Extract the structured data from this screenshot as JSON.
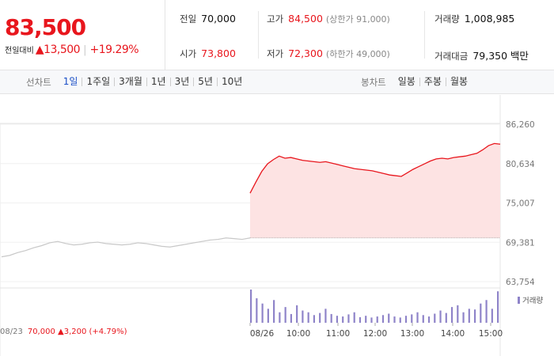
{
  "price": {
    "current": "83,500",
    "change_label": "전일대비",
    "change": "▲13,500",
    "change_pct": "+19.29%"
  },
  "stats": {
    "prev_close": {
      "label": "전일",
      "value": "70,000"
    },
    "open": {
      "label": "시가",
      "value": "73,800"
    },
    "high": {
      "label": "고가",
      "value": "84,500",
      "sub": "(상한가 91,000)"
    },
    "low": {
      "label": "저가",
      "value": "72,300",
      "sub": "(하한가 49,000)"
    },
    "volume": {
      "label": "거래량",
      "value": "1,008,985"
    },
    "amount": {
      "label": "거래대금",
      "value": "79,350",
      "unit": "백만"
    }
  },
  "period_tabs": {
    "label": "선차트",
    "items": [
      "1일",
      "1주일",
      "3개월",
      "1년",
      "3년",
      "5년",
      "10년"
    ],
    "active": "1일"
  },
  "candle_tabs": {
    "label": "봉차트",
    "items": [
      "일봉",
      "주봉",
      "월봉"
    ]
  },
  "colors": {
    "up": "#e8161d",
    "prev_line": "#c8c8c8",
    "area": "#fde3e3",
    "volume": "#8f84c9",
    "active_tab": "#1a4fc7"
  },
  "chart_data": {
    "type": "area",
    "y_ticks": [
      "86,260",
      "80,634",
      "75,007",
      "69,381",
      "63,754"
    ],
    "ylim": [
      63754,
      86260
    ],
    "x_ticks": [
      "08/26",
      "10:00",
      "11:00",
      "12:00",
      "13:00",
      "14:00",
      "15:00"
    ],
    "prev_day": {
      "date": "08/23",
      "close": "70,000",
      "change": "▲3,200",
      "change_pct": "(+4.79%)",
      "values": [
        67300,
        67500,
        67900,
        68200,
        68600,
        68900,
        69300,
        69500,
        69200,
        69000,
        69100,
        69300,
        69400,
        69200,
        69100,
        69000,
        69100,
        69300,
        69200,
        69000,
        68800,
        68700,
        68900,
        69100,
        69300,
        69500,
        69700,
        69800,
        70000,
        69900,
        69800,
        70000
      ]
    },
    "today": {
      "base": 70000,
      "values": [
        76400,
        78000,
        79500,
        80600,
        81200,
        81700,
        81400,
        81500,
        81300,
        81100,
        81000,
        80900,
        80800,
        80900,
        80700,
        80500,
        80300,
        80100,
        79900,
        79800,
        79700,
        79600,
        79400,
        79200,
        79000,
        78900,
        78800,
        79300,
        79800,
        80200,
        80600,
        81000,
        81300,
        81400,
        81300,
        81500,
        81600,
        81700,
        81900,
        82100,
        82600,
        83200,
        83500,
        83400
      ]
    },
    "volume": {
      "legend": "거래량",
      "values": [
        95,
        70,
        55,
        40,
        65,
        30,
        45,
        25,
        50,
        35,
        30,
        22,
        28,
        40,
        25,
        20,
        18,
        24,
        30,
        16,
        20,
        15,
        18,
        22,
        26,
        18,
        15,
        20,
        24,
        30,
        22,
        18,
        26,
        35,
        28,
        45,
        50,
        30,
        40,
        38,
        55,
        65,
        40,
        90
      ]
    }
  }
}
